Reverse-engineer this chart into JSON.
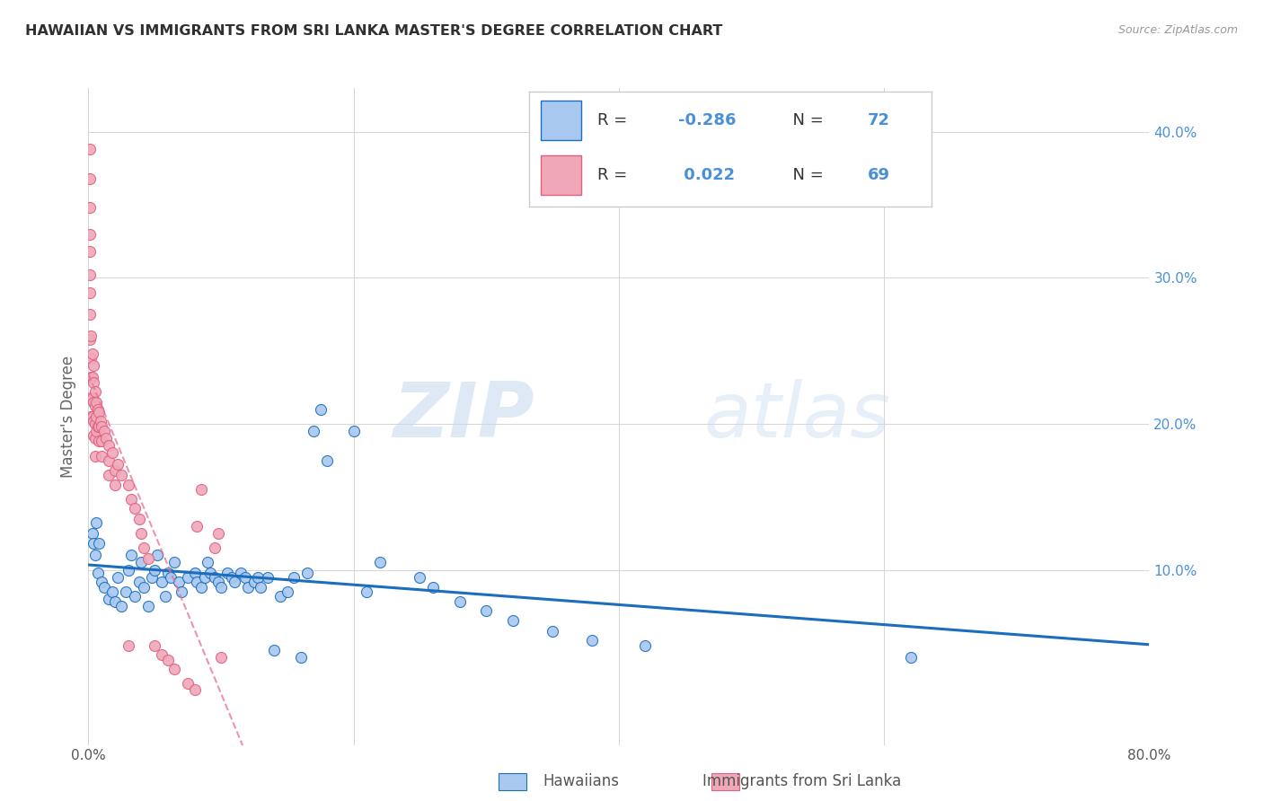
{
  "title": "HAWAIIAN VS IMMIGRANTS FROM SRI LANKA MASTER'S DEGREE CORRELATION CHART",
  "source": "Source: ZipAtlas.com",
  "ylabel": "Master's Degree",
  "watermark_zip": "ZIP",
  "watermark_atlas": "atlas",
  "hawaiians_R": -0.286,
  "hawaiians_N": 72,
  "srilanka_R": 0.022,
  "srilanka_N": 69,
  "xlim": [
    0.0,
    0.8
  ],
  "ylim": [
    -0.02,
    0.43
  ],
  "color_hawaiians_fill": "#a8c8f0",
  "color_hawaiians_edge": "#1a6ebd",
  "color_srilanka_fill": "#f0a8b8",
  "color_srilanka_edge": "#e06080",
  "color_line_hawaiians": "#1a6ebd",
  "color_line_srilanka": "#e87090",
  "hawaiians_x": [
    0.003,
    0.004,
    0.005,
    0.006,
    0.007,
    0.008,
    0.01,
    0.012,
    0.015,
    0.018,
    0.02,
    0.022,
    0.025,
    0.028,
    0.03,
    0.032,
    0.035,
    0.038,
    0.04,
    0.042,
    0.045,
    0.048,
    0.05,
    0.052,
    0.055,
    0.058,
    0.06,
    0.062,
    0.065,
    0.068,
    0.07,
    0.075,
    0.08,
    0.082,
    0.085,
    0.088,
    0.09,
    0.092,
    0.095,
    0.098,
    0.1,
    0.105,
    0.108,
    0.11,
    0.115,
    0.118,
    0.12,
    0.125,
    0.128,
    0.13,
    0.135,
    0.14,
    0.145,
    0.15,
    0.155,
    0.16,
    0.165,
    0.17,
    0.175,
    0.18,
    0.2,
    0.21,
    0.22,
    0.25,
    0.26,
    0.28,
    0.3,
    0.32,
    0.35,
    0.38,
    0.42,
    0.62
  ],
  "hawaiians_y": [
    0.125,
    0.118,
    0.11,
    0.132,
    0.098,
    0.118,
    0.092,
    0.088,
    0.08,
    0.085,
    0.078,
    0.095,
    0.075,
    0.085,
    0.1,
    0.11,
    0.082,
    0.092,
    0.105,
    0.088,
    0.075,
    0.095,
    0.1,
    0.11,
    0.092,
    0.082,
    0.098,
    0.095,
    0.105,
    0.092,
    0.085,
    0.095,
    0.098,
    0.092,
    0.088,
    0.095,
    0.105,
    0.098,
    0.095,
    0.092,
    0.088,
    0.098,
    0.095,
    0.092,
    0.098,
    0.095,
    0.088,
    0.092,
    0.095,
    0.088,
    0.095,
    0.045,
    0.082,
    0.085,
    0.095,
    0.04,
    0.098,
    0.195,
    0.21,
    0.175,
    0.195,
    0.085,
    0.105,
    0.095,
    0.088,
    0.078,
    0.072,
    0.065,
    0.058,
    0.052,
    0.048,
    0.04
  ],
  "srilanka_x": [
    0.001,
    0.001,
    0.001,
    0.001,
    0.001,
    0.001,
    0.001,
    0.001,
    0.001,
    0.002,
    0.002,
    0.002,
    0.002,
    0.002,
    0.003,
    0.003,
    0.003,
    0.003,
    0.004,
    0.004,
    0.004,
    0.004,
    0.004,
    0.005,
    0.005,
    0.005,
    0.005,
    0.005,
    0.006,
    0.006,
    0.006,
    0.007,
    0.007,
    0.008,
    0.008,
    0.008,
    0.009,
    0.01,
    0.01,
    0.01,
    0.012,
    0.013,
    0.015,
    0.015,
    0.015,
    0.018,
    0.02,
    0.02,
    0.022,
    0.025,
    0.03,
    0.03,
    0.032,
    0.035,
    0.038,
    0.04,
    0.042,
    0.045,
    0.05,
    0.055,
    0.06,
    0.065,
    0.075,
    0.08,
    0.082,
    0.085,
    0.095,
    0.098,
    0.1
  ],
  "srilanka_y": [
    0.388,
    0.368,
    0.348,
    0.33,
    0.318,
    0.302,
    0.29,
    0.275,
    0.258,
    0.26,
    0.245,
    0.232,
    0.218,
    0.205,
    0.248,
    0.232,
    0.218,
    0.205,
    0.24,
    0.228,
    0.215,
    0.202,
    0.192,
    0.222,
    0.212,
    0.2,
    0.19,
    0.178,
    0.215,
    0.205,
    0.195,
    0.21,
    0.198,
    0.208,
    0.198,
    0.188,
    0.202,
    0.198,
    0.188,
    0.178,
    0.195,
    0.19,
    0.185,
    0.175,
    0.165,
    0.18,
    0.168,
    0.158,
    0.172,
    0.165,
    0.158,
    0.048,
    0.148,
    0.142,
    0.135,
    0.125,
    0.115,
    0.108,
    0.048,
    0.042,
    0.038,
    0.032,
    0.022,
    0.018,
    0.13,
    0.155,
    0.115,
    0.125,
    0.04
  ],
  "background_color": "#ffffff",
  "grid_color": "#d5d5d5",
  "title_color": "#303030",
  "axis_label_color": "#666666",
  "right_ytick_color": "#4a90d9",
  "legend_value_color": "#4a90d9"
}
